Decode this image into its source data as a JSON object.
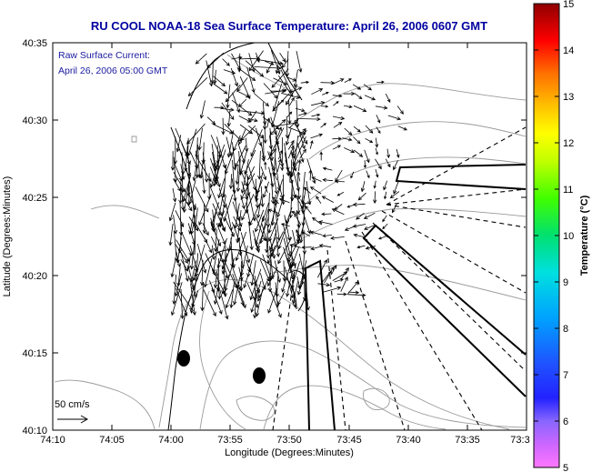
{
  "title": "RU COOL  NOAA-18  Sea Surface Temperature:  April 26, 2006 0607 GMT",
  "annotation": {
    "line1": "Raw Surface Current:",
    "line2": "April 26, 2006 05:00 GMT"
  },
  "scale_label": "50 cm/s",
  "chart_data": {
    "type": "map",
    "xlabel": "Longitude (Degrees:Minutes)",
    "ylabel": "Latitude (Degrees:Minutes)",
    "x_ticks": [
      "74:10",
      "74:05",
      "74:00",
      "73:55",
      "73:50",
      "73:45",
      "73:40",
      "73:35",
      "73:3"
    ],
    "y_ticks": [
      "40:35",
      "40:30",
      "40:25",
      "40:20",
      "40:15",
      "40:10"
    ],
    "xlim_minutes_west": [
      10,
      30
    ],
    "ylim_minutes_north": [
      10,
      35
    ],
    "colorbar": {
      "label": "Temperature (°C)",
      "ticks": [
        "15",
        "14",
        "13",
        "12",
        "11",
        "10",
        "9",
        "8",
        "7",
        "6",
        "5"
      ],
      "range": [
        5,
        15
      ]
    }
  },
  "colors": {
    "title": "#0000a0",
    "coast": "#000000",
    "contour": "#999999",
    "vectors": "#000000"
  }
}
